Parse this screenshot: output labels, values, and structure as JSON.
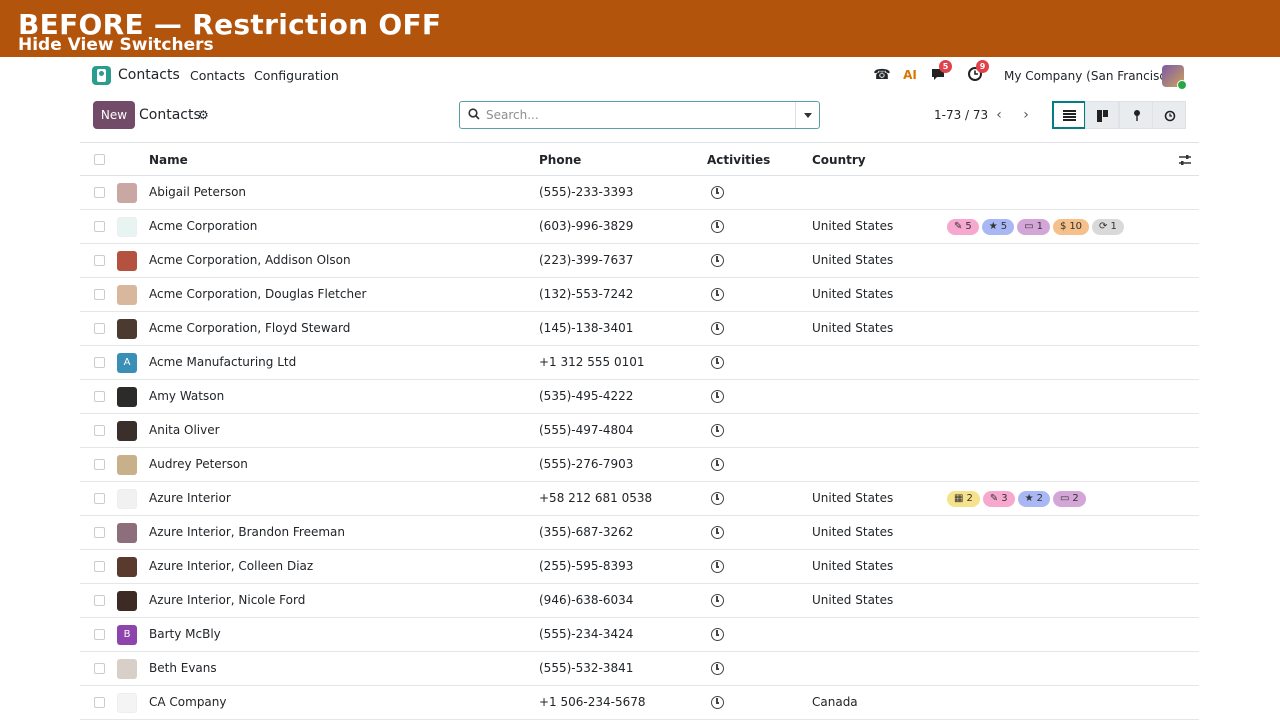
{
  "banner": {
    "title": "BEFORE — Restriction OFF",
    "subtitle": "Hide View Switchers"
  },
  "navbar": {
    "app_name": "Contacts",
    "menu": [
      "Contacts",
      "Configuration"
    ],
    "messages_badge": "5",
    "activities_badge": "9",
    "company": "My Company (San Francisco)"
  },
  "control_panel": {
    "new_label": "New",
    "title": "Contacts",
    "search_placeholder": "Search...",
    "pager": "1-73 / 73",
    "views": [
      "list-view-icon",
      "kanban-view-icon",
      "map-view-icon",
      "activity-view-icon"
    ]
  },
  "table": {
    "headers": {
      "name": "Name",
      "phone": "Phone",
      "activities": "Activities",
      "country": "Country"
    },
    "rows": [
      {
        "name": "Abigail Peterson",
        "phone": "(555)-233-3393",
        "country": "",
        "avatar": "photo",
        "color": "#c9a7a2",
        "tags": []
      },
      {
        "name": "Acme Corporation",
        "phone": "(603)-996-3829",
        "country": "United States",
        "avatar": "logo",
        "color": "#e8f4f1",
        "tags": [
          {
            "icon": "✎",
            "text": "5",
            "color": "#f6a8cf"
          },
          {
            "icon": "★",
            "text": "5",
            "color": "#a9b7f5"
          },
          {
            "icon": "▭",
            "text": "1",
            "color": "#d4a6d8"
          },
          {
            "icon": "$",
            "text": "10",
            "color": "#f5c08a"
          },
          {
            "icon": "⟳",
            "text": "1",
            "color": "#d9d9d9"
          }
        ]
      },
      {
        "name": "Acme Corporation, Addison Olson",
        "phone": "(223)-399-7637",
        "country": "United States",
        "avatar": "photo",
        "color": "#b5523f",
        "tags": []
      },
      {
        "name": "Acme Corporation, Douglas Fletcher",
        "phone": "(132)-553-7242",
        "country": "United States",
        "avatar": "photo",
        "color": "#d9b79c",
        "tags": []
      },
      {
        "name": "Acme Corporation, Floyd Steward",
        "phone": "(145)-138-3401",
        "country": "United States",
        "avatar": "photo",
        "color": "#4a3a30",
        "tags": []
      },
      {
        "name": "Acme Manufacturing Ltd",
        "phone": "+1 312 555 0101",
        "country": "",
        "avatar": "A",
        "color": "#3a8fb7",
        "tags": []
      },
      {
        "name": "Amy Watson",
        "phone": "(535)-495-4222",
        "country": "",
        "avatar": "photo",
        "color": "#2d2a2a",
        "tags": []
      },
      {
        "name": "Anita Oliver",
        "phone": "(555)-497-4804",
        "country": "",
        "avatar": "photo",
        "color": "#3b2f2b",
        "tags": []
      },
      {
        "name": "Audrey Peterson",
        "phone": "(555)-276-7903",
        "country": "",
        "avatar": "photo",
        "color": "#c8b08a",
        "tags": []
      },
      {
        "name": "Azure Interior",
        "phone": "+58 212 681 0538",
        "country": "United States",
        "avatar": "logo",
        "color": "#f1f1f1",
        "tags": [
          {
            "icon": "▦",
            "text": "2",
            "color": "#f6e28a"
          },
          {
            "icon": "✎",
            "text": "3",
            "color": "#f6a8cf"
          },
          {
            "icon": "★",
            "text": "2",
            "color": "#a9b7f5"
          },
          {
            "icon": "▭",
            "text": "2",
            "color": "#d4a6d8"
          }
        ]
      },
      {
        "name": "Azure Interior, Brandon Freeman",
        "phone": "(355)-687-3262",
        "country": "United States",
        "avatar": "photo",
        "color": "#8c6f7a",
        "tags": []
      },
      {
        "name": "Azure Interior, Colleen Diaz",
        "phone": "(255)-595-8393",
        "country": "United States",
        "avatar": "photo",
        "color": "#5a3a2c",
        "tags": []
      },
      {
        "name": "Azure Interior, Nicole Ford",
        "phone": "(946)-638-6034",
        "country": "United States",
        "avatar": "photo",
        "color": "#3e2a24",
        "tags": []
      },
      {
        "name": "Barty McBly",
        "phone": "(555)-234-3424",
        "country": "",
        "avatar": "B",
        "color": "#8e44ad",
        "tags": []
      },
      {
        "name": "Beth Evans",
        "phone": "(555)-532-3841",
        "country": "",
        "avatar": "photo",
        "color": "#d7cfc8",
        "tags": []
      },
      {
        "name": "CA Company",
        "phone": "+1 506-234-5678",
        "country": "Canada",
        "avatar": "logo",
        "color": "#f4f4f4",
        "tags": []
      }
    ]
  }
}
